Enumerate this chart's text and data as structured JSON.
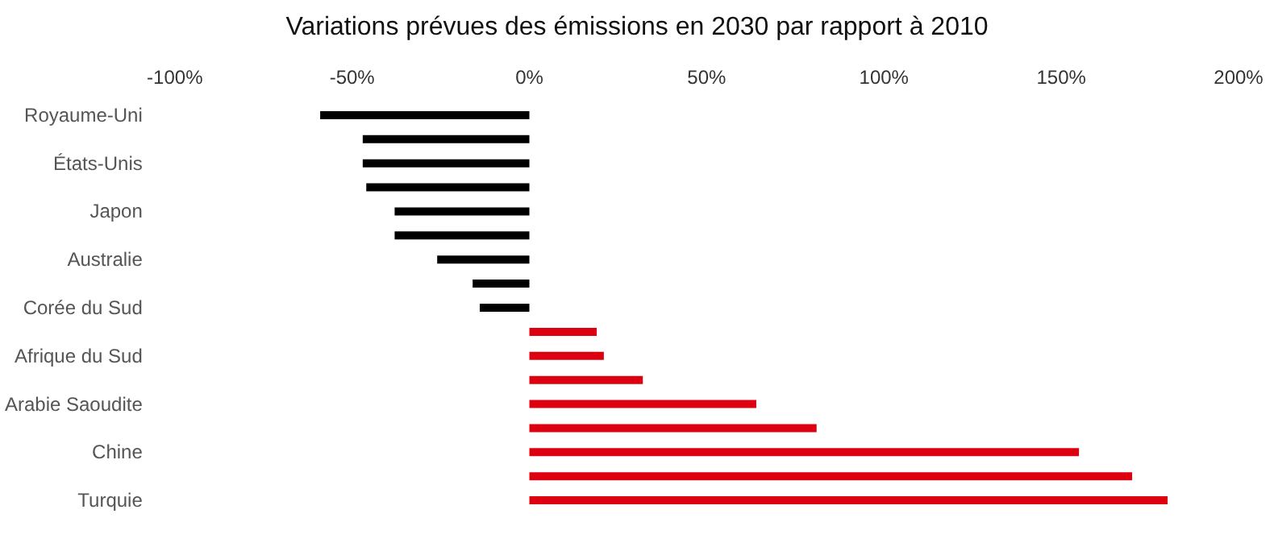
{
  "chart_data": {
    "type": "bar",
    "orientation": "horizontal",
    "title": "Variations prévues des émissions en 2030 par rapport à 2010",
    "categories": [
      "Royaume-Uni",
      null,
      "États-Unis",
      null,
      "Japon",
      null,
      "Australie",
      null,
      "Corée du Sud",
      null,
      "Afrique du Sud",
      null,
      "Arabie Saoudite",
      null,
      "Chine",
      null,
      "Turquie"
    ],
    "values": [
      -59,
      -47,
      -47,
      -46,
      -38,
      -38,
      -26,
      -16,
      -14,
      19,
      21,
      32,
      64,
      81,
      155,
      170,
      180
    ],
    "colors": [
      "#000000",
      "#000000",
      "#000000",
      "#000000",
      "#000000",
      "#000000",
      "#000000",
      "#000000",
      "#000000",
      "#dc0011",
      "#dc0011",
      "#dc0011",
      "#dc0011",
      "#dc0011",
      "#dc0011",
      "#dc0011",
      "#dc0011"
    ],
    "xlim": [
      -100,
      200
    ],
    "xticks": [
      {
        "value": -100,
        "label": "-100%"
      },
      {
        "value": -50,
        "label": "-50%"
      },
      {
        "value": 0,
        "label": "0%"
      },
      {
        "value": 50,
        "label": "50%"
      },
      {
        "value": 100,
        "label": "100%"
      },
      {
        "value": 150,
        "label": "150%"
      },
      {
        "value": 200,
        "label": "200%"
      }
    ],
    "grid": false
  }
}
